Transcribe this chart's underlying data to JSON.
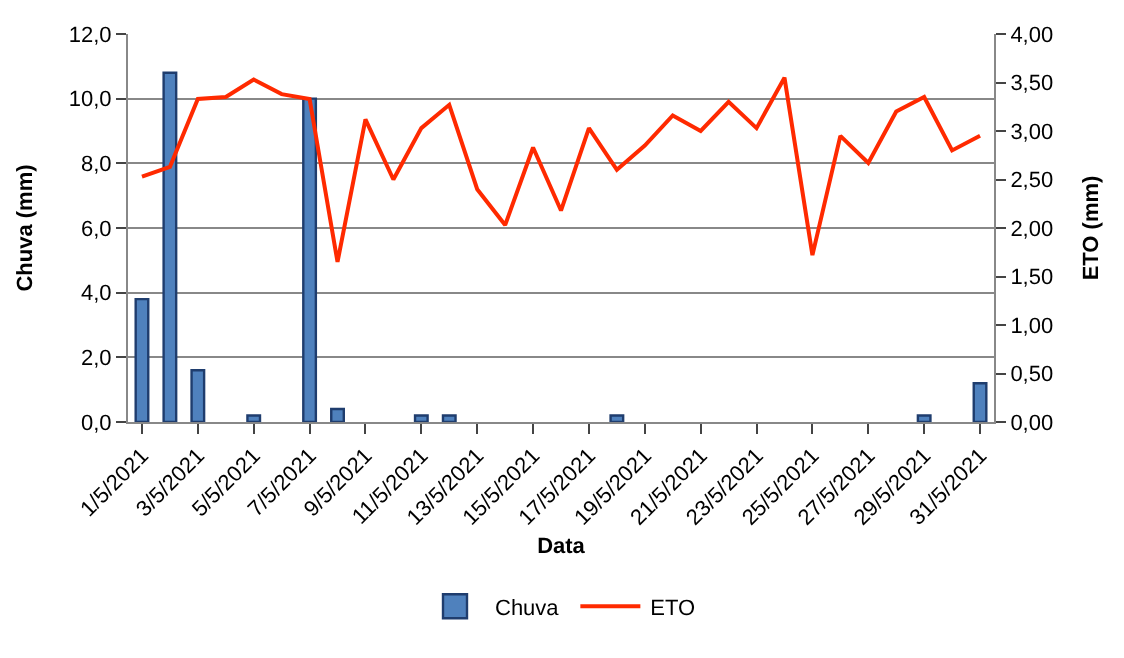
{
  "chart_data": {
    "type": "bar",
    "xlabel": "Data",
    "ylabel": "Chuva (mm)",
    "y2label": "ETO (mm)",
    "categories": [
      "1/5/2021",
      null,
      "3/5/2021",
      null,
      "5/5/2021",
      null,
      "7/5/2021",
      null,
      "9/5/2021",
      null,
      "11/5/2021",
      null,
      "13/5/2021",
      null,
      "15/5/2021",
      null,
      "17/5/2021",
      null,
      "19/5/2021",
      null,
      "21/5/2021",
      null,
      "23/5/2021",
      null,
      "25/5/2021",
      null,
      "27/5/2021",
      null,
      "29/5/2021",
      null,
      "31/5/2021"
    ],
    "series": [
      {
        "name": "Chuva",
        "color": "#4f81bd",
        "values": [
          3.8,
          10.8,
          1.6,
          0,
          0.2,
          0,
          10.0,
          0.4,
          0,
          0,
          0.2,
          0.2,
          0,
          0,
          0,
          0,
          0,
          0.2,
          0,
          0,
          0,
          0,
          0,
          0,
          0,
          0,
          0,
          0,
          0.2,
          0,
          1.2
        ]
      },
      {
        "name": "ETO",
        "type": "line",
        "axis": "y2",
        "color": "#ff2a00",
        "values": [
          2.53,
          2.63,
          3.33,
          3.35,
          3.53,
          3.38,
          3.33,
          1.65,
          3.12,
          2.5,
          3.03,
          3.27,
          2.4,
          2.03,
          2.83,
          2.18,
          3.03,
          2.6,
          2.85,
          3.16,
          3.0,
          3.3,
          3.03,
          3.55,
          1.72,
          2.95,
          2.67,
          3.2,
          3.35,
          2.8,
          2.95
        ]
      }
    ],
    "ylim": [
      0,
      12
    ],
    "yticks": [
      {
        "value": 0,
        "label": "0,0"
      },
      {
        "value": 2,
        "label": "2,0"
      },
      {
        "value": 4,
        "label": "4,0"
      },
      {
        "value": 6,
        "label": "6,0"
      },
      {
        "value": 8,
        "label": "8,0"
      },
      {
        "value": 10,
        "label": "10,0"
      },
      {
        "value": 12,
        "label": "12,0"
      }
    ],
    "y2lim": [
      0,
      4
    ],
    "y2ticks": [
      {
        "value": 0,
        "label": "0,00"
      },
      {
        "value": 0.5,
        "label": "0,50"
      },
      {
        "value": 1,
        "label": "1,00"
      },
      {
        "value": 1.5,
        "label": "1,50"
      },
      {
        "value": 2,
        "label": "2,00"
      },
      {
        "value": 2.5,
        "label": "2,50"
      },
      {
        "value": 3,
        "label": "3,00"
      },
      {
        "value": 3.5,
        "label": "3,50"
      },
      {
        "value": 4,
        "label": "4,00"
      }
    ],
    "grid": "y",
    "legend": "bottom",
    "marker": "none",
    "line_style": "solid"
  }
}
